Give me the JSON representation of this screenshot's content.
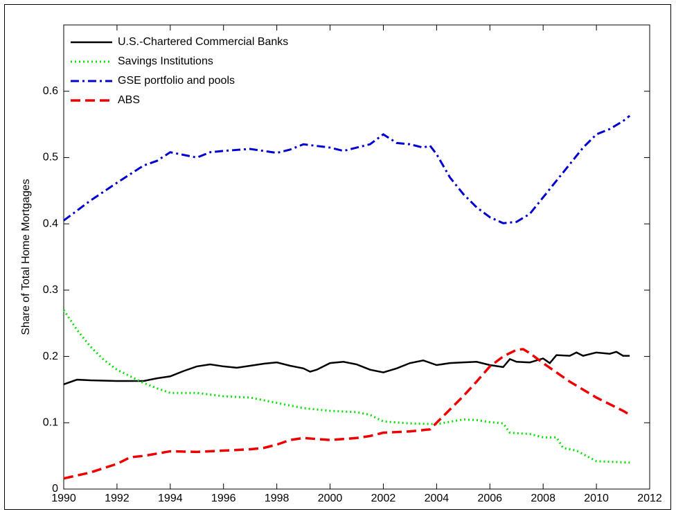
{
  "chart_data": {
    "type": "line",
    "ylabel": "Share of Total Home Mortgages",
    "xlim": [
      1990,
      2012
    ],
    "xticks": [
      1990,
      1992,
      1994,
      1996,
      1998,
      2000,
      2002,
      2004,
      2006,
      2008,
      2010,
      2012
    ],
    "ylim": [
      0,
      0.7
    ],
    "yticks": [
      0,
      0.1,
      0.2,
      0.3,
      0.4,
      0.5,
      0.6
    ],
    "legend": "top-left",
    "series": [
      {
        "name": "U.S.-Chartered Commercial Banks",
        "color": "#000000",
        "style": "solid",
        "x": [
          1990,
          1990.5,
          1991,
          1992,
          1993,
          1993.5,
          1994,
          1994.5,
          1995,
          1995.5,
          1996,
          1996.5,
          1997,
          1997.5,
          1998,
          1998.5,
          1999,
          1999.25,
          1999.5,
          2000,
          2000.5,
          2001,
          2001.5,
          2002,
          2002.5,
          2003,
          2003.5,
          2004,
          2004.5,
          2005,
          2005.5,
          2006,
          2006.5,
          2006.75,
          2007,
          2007.5,
          2008,
          2008.25,
          2008.5,
          2009,
          2009.25,
          2009.5,
          2010,
          2010.5,
          2010.75,
          2011,
          2011.25
        ],
        "values": [
          0.158,
          0.165,
          0.164,
          0.163,
          0.163,
          0.167,
          0.17,
          0.178,
          0.185,
          0.188,
          0.185,
          0.183,
          0.186,
          0.189,
          0.191,
          0.186,
          0.182,
          0.177,
          0.18,
          0.19,
          0.192,
          0.188,
          0.18,
          0.176,
          0.182,
          0.19,
          0.194,
          0.187,
          0.19,
          0.191,
          0.192,
          0.187,
          0.184,
          0.196,
          0.192,
          0.191,
          0.197,
          0.19,
          0.202,
          0.201,
          0.206,
          0.201,
          0.206,
          0.204,
          0.207,
          0.201,
          0.201
        ]
      },
      {
        "name": "Savings Institutions",
        "color": "#00e000",
        "style": "dotted",
        "x": [
          1990,
          1990.5,
          1991,
          1991.5,
          1992,
          1992.5,
          1993,
          1993.5,
          1994,
          1995,
          1996,
          1997,
          1998,
          1999,
          2000,
          2001,
          2001.5,
          2002,
          2003,
          2004,
          2005,
          2005.5,
          2006,
          2006.5,
          2006.75,
          2007.5,
          2008,
          2008.5,
          2008.75,
          2009.25,
          2010,
          2011.25
        ],
        "values": [
          0.27,
          0.24,
          0.215,
          0.195,
          0.18,
          0.17,
          0.16,
          0.152,
          0.145,
          0.145,
          0.14,
          0.138,
          0.13,
          0.122,
          0.118,
          0.116,
          0.112,
          0.102,
          0.099,
          0.098,
          0.105,
          0.104,
          0.101,
          0.099,
          0.085,
          0.083,
          0.078,
          0.078,
          0.062,
          0.058,
          0.042,
          0.04
        ]
      },
      {
        "name": "GSE portfolio and pools",
        "color": "#0000d0",
        "style": "dashdot",
        "x": [
          1990,
          1991,
          1992,
          1993,
          1993.5,
          1994,
          1995,
          1995.5,
          1996,
          1997,
          1998,
          1998.5,
          1999,
          2000,
          2000.5,
          2001,
          2001.5,
          2002,
          2002.5,
          2003,
          2003.5,
          2003.75,
          2004,
          2004.5,
          2005,
          2005.5,
          2006,
          2006.5,
          2007,
          2007.5,
          2008,
          2008.5,
          2009,
          2009.5,
          2010,
          2010.5,
          2011,
          2011.25
        ],
        "values": [
          0.405,
          0.435,
          0.462,
          0.488,
          0.495,
          0.508,
          0.5,
          0.508,
          0.51,
          0.513,
          0.507,
          0.512,
          0.52,
          0.515,
          0.51,
          0.515,
          0.52,
          0.535,
          0.522,
          0.52,
          0.515,
          0.518,
          0.505,
          0.47,
          0.445,
          0.425,
          0.41,
          0.401,
          0.403,
          0.415,
          0.44,
          0.465,
          0.49,
          0.515,
          0.535,
          0.543,
          0.555,
          0.563
        ]
      },
      {
        "name": "ABS",
        "color": "#ee0000",
        "style": "dashed",
        "x": [
          1990,
          1991,
          1992,
          1992.5,
          1993,
          1994,
          1995,
          1996,
          1997,
          1997.5,
          1998,
          1998.5,
          1999,
          2000,
          2001,
          2001.5,
          2002,
          2002.5,
          2003,
          2003.75,
          2004,
          2004.5,
          2005,
          2005.5,
          2006,
          2006.5,
          2007,
          2007.25,
          2007.5,
          2008,
          2009,
          2010,
          2011,
          2011.25
        ],
        "values": [
          0.016,
          0.025,
          0.038,
          0.048,
          0.05,
          0.057,
          0.056,
          0.058,
          0.06,
          0.062,
          0.067,
          0.074,
          0.077,
          0.074,
          0.077,
          0.08,
          0.085,
          0.086,
          0.087,
          0.09,
          0.1,
          0.12,
          0.14,
          0.162,
          0.185,
          0.2,
          0.21,
          0.211,
          0.205,
          0.19,
          0.162,
          0.138,
          0.118,
          0.112
        ]
      }
    ]
  }
}
